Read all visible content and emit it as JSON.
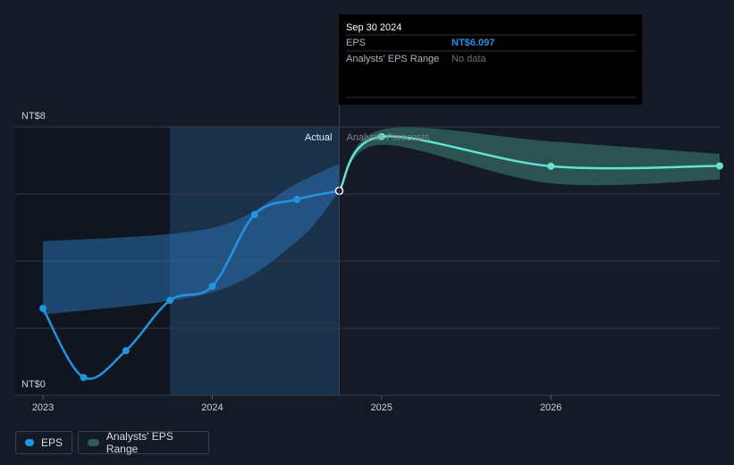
{
  "chart_data": {
    "type": "line",
    "xlim": [
      2022.836,
      2026.997
    ],
    "ylim": [
      0,
      8
    ],
    "xticks": [
      2023,
      2024,
      2025,
      2026
    ],
    "yticks": [
      {
        "value": 0,
        "label": "NT$0"
      },
      {
        "value": 2,
        "label": null
      },
      {
        "value": 4,
        "label": null
      },
      {
        "value": 6,
        "label": null
      },
      {
        "value": 8,
        "label": "NT$8"
      }
    ],
    "grid": true,
    "highlight_range": [
      2023.75,
      2024.75
    ],
    "annotations": {
      "actual": "Actual",
      "forecast": "Analysts Forecasts"
    },
    "series": [
      {
        "name": "EPS",
        "color": "#2394df",
        "x": [
          2023.0,
          2023.24,
          2023.49,
          2023.75,
          2024.0,
          2024.25,
          2024.5,
          2024.75
        ],
        "values": [
          2.59,
          0.53,
          1.33,
          2.83,
          3.25,
          5.39,
          5.84,
          6.097
        ]
      },
      {
        "name": "Analysts' EPS Range",
        "color": "#2f5d5a",
        "x": [
          2024.75,
          2025.0,
          2026.0,
          2026.997
        ],
        "low": [
          6.097,
          7.47,
          6.32,
          6.43
        ],
        "high": [
          6.097,
          7.92,
          7.57,
          7.2
        ]
      }
    ],
    "forecast": {
      "color": "#64e3d4",
      "x": [
        2024.75,
        2025.0,
        2026.0,
        2026.997
      ],
      "values": [
        6.097,
        7.71,
        6.83,
        6.84
      ]
    },
    "past_range": {
      "color": "#2a6fb0",
      "x": [
        2023.0,
        2024.0,
        2024.5,
        2024.75
      ],
      "low": [
        2.4,
        3.07,
        4.59,
        6.097
      ],
      "high": [
        4.59,
        4.99,
        6.32,
        6.9
      ]
    },
    "tooltip": {
      "title": "Sep 30 2024",
      "rows": [
        {
          "label": "EPS",
          "value": "NT$6.097"
        },
        {
          "label": "Analysts' EPS Range",
          "value": "No data"
        }
      ]
    }
  }
}
